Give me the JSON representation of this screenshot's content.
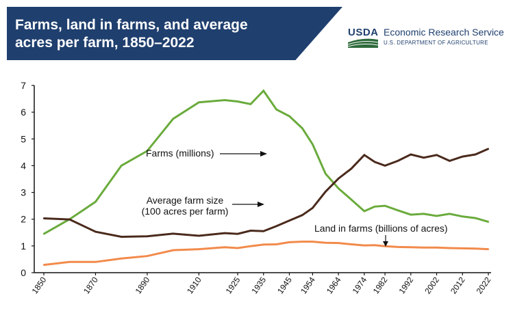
{
  "header": {
    "title": "Farms, land in farms, and average acres per farm, 1850–2022",
    "agency_mark": "USDA",
    "agency_name": "Economic Research Service",
    "department": "U.S. DEPARTMENT OF AGRICULTURE"
  },
  "colors": {
    "header_bg": "#1f3f6e",
    "farms": "#6aab3c",
    "avg_size": "#4a2a1c",
    "land": "#f28a4b",
    "axis": "#111111"
  },
  "chart_data": {
    "type": "line",
    "title": "Farms, land in farms, and average acres per farm, 1850–2022",
    "xlabel": "",
    "ylabel": "",
    "ylim": [
      0,
      7
    ],
    "yticks": [
      0,
      1,
      2,
      3,
      4,
      5,
      6,
      7
    ],
    "xtick_labels": [
      "1850",
      "1870",
      "1890",
      "1910",
      "1925",
      "1935",
      "1945",
      "1954",
      "1964",
      "1974",
      "1982",
      "1992",
      "2002",
      "2012",
      "2022"
    ],
    "x": [
      1850,
      1860,
      1870,
      1880,
      1890,
      1900,
      1910,
      1920,
      1925,
      1930,
      1935,
      1940,
      1945,
      1950,
      1954,
      1959,
      1964,
      1969,
      1974,
      1978,
      1982,
      1987,
      1992,
      1997,
      2002,
      2007,
      2012,
      2017,
      2022
    ],
    "series": [
      {
        "name": "Farms (millions)",
        "values": [
          1.45,
          2.0,
          2.65,
          4.0,
          4.55,
          5.75,
          6.37,
          6.45,
          6.4,
          6.3,
          6.8,
          6.1,
          5.85,
          5.4,
          4.8,
          3.7,
          3.15,
          2.73,
          2.3,
          2.47,
          2.5,
          2.33,
          2.17,
          2.2,
          2.12,
          2.2,
          2.1,
          2.04,
          1.9
        ]
      },
      {
        "name": "Average farm size (100 acres per farm)",
        "values": [
          2.03,
          1.99,
          1.53,
          1.34,
          1.36,
          1.46,
          1.38,
          1.48,
          1.45,
          1.57,
          1.55,
          1.74,
          1.95,
          2.15,
          2.42,
          3.03,
          3.52,
          3.89,
          4.4,
          4.14,
          4.0,
          4.18,
          4.42,
          4.3,
          4.4,
          4.18,
          4.34,
          4.42,
          4.63
        ]
      },
      {
        "name": "Land in farms (billions of acres)",
        "values": [
          0.29,
          0.4,
          0.4,
          0.53,
          0.62,
          0.84,
          0.88,
          0.95,
          0.92,
          0.99,
          1.05,
          1.06,
          1.14,
          1.16,
          1.16,
          1.12,
          1.11,
          1.06,
          1.02,
          1.03,
          0.99,
          0.96,
          0.95,
          0.94,
          0.94,
          0.92,
          0.91,
          0.9,
          0.88
        ]
      }
    ],
    "annotations": [
      {
        "series": 0,
        "lines": [
          "Farms (millions)"
        ]
      },
      {
        "series": 1,
        "lines": [
          "Average farm size",
          "(100 acres per farm)"
        ]
      },
      {
        "series": 2,
        "lines": [
          "Land in farms (billions of acres)"
        ]
      }
    ]
  }
}
